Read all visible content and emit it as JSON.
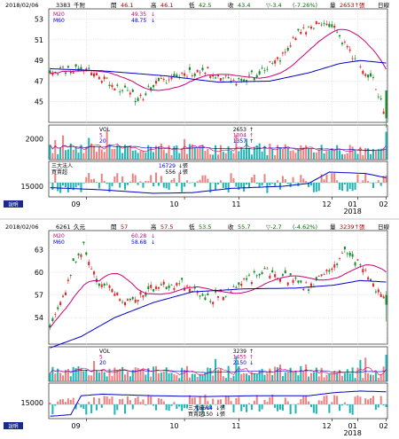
{
  "chart_data": [
    {
      "type": "candlestick",
      "header": {
        "date": "2018/02/06",
        "code": "3383",
        "name": "千附",
        "open_label": "開",
        "open": "46.1",
        "high_label": "高",
        "high": "46.1",
        "low_label": "低",
        "low": "42.5",
        "close_label": "收",
        "close": "43.4",
        "change": "▽-3.4",
        "change_pct": "(-7.26%)",
        "volume_label": "量",
        "volume": "2653↑張",
        "period": "日線"
      },
      "price_axis": {
        "ticks": [
          "53",
          "51",
          "49",
          "47",
          "45"
        ],
        "range": [
          43,
          54
        ]
      },
      "ma_legend": [
        {
          "name": "M20",
          "value": "49.35",
          "arrow": "↓"
        },
        {
          "name": "M60",
          "value": "48.75",
          "arrow": "↓"
        }
      ],
      "volume_legend": {
        "title": "VOL",
        "rows": [
          {
            "name": "VOL",
            "value": "2653",
            "arrow": "↑"
          },
          {
            "name": "5",
            "value": "1004",
            "arrow": "↑"
          },
          {
            "name": "20",
            "value": "1357",
            "arrow": "↑"
          }
        ]
      },
      "volume_axis": {
        "ticks": [
          "2000"
        ],
        "range": [
          0,
          3300
        ]
      },
      "inst_legend": [
        {
          "name": "三大法人",
          "value": "16729",
          "arrow": "↓張"
        },
        {
          "name": "買賣超",
          "value": "556",
          "arrow": "↓張"
        }
      ],
      "inst_axis": {
        "ticks": [
          "15000"
        ],
        "range": [
          13500,
          18500
        ],
        "bar_range": [
          -1200,
          1200
        ]
      },
      "x_axis": {
        "months": [
          "09",
          "10",
          "11",
          "12",
          "01",
          "02"
        ],
        "year": "2018"
      },
      "legend_button": "說明",
      "seed": 11,
      "waypoints": [
        [
          0,
          48
        ],
        [
          14,
          48.2
        ],
        [
          24,
          46.8
        ],
        [
          34,
          45.2
        ],
        [
          40,
          46.6
        ],
        [
          52,
          47.8
        ],
        [
          60,
          48
        ],
        [
          72,
          47
        ],
        [
          80,
          47.6
        ],
        [
          88,
          49
        ],
        [
          96,
          51.5
        ],
        [
          104,
          52.8
        ],
        [
          110,
          52
        ],
        [
          117,
          49.5
        ],
        [
          120,
          48.8
        ],
        [
          125,
          47
        ],
        [
          130,
          43.4
        ]
      ],
      "ma60_points": [
        [
          0,
          48.2
        ],
        [
          20,
          48
        ],
        [
          45,
          47.5
        ],
        [
          65,
          46.9
        ],
        [
          85,
          47
        ],
        [
          100,
          47.8
        ],
        [
          112,
          48.7
        ],
        [
          120,
          49
        ],
        [
          130,
          48.75
        ]
      ],
      "inst_points": [
        [
          0,
          14800
        ],
        [
          20,
          14500
        ],
        [
          40,
          14000
        ],
        [
          55,
          14100
        ],
        [
          70,
          14700
        ],
        [
          90,
          15000
        ],
        [
          100,
          15400
        ],
        [
          108,
          17000
        ],
        [
          115,
          16900
        ],
        [
          122,
          16800
        ],
        [
          130,
          16200
        ]
      ],
      "last_ohlc": [
        46.1,
        46.1,
        42.5,
        43.4
      ]
    },
    {
      "type": "candlestick",
      "header": {
        "date": "2018/02/06",
        "code": "6261",
        "name": "久元",
        "open_label": "開",
        "open": "57",
        "high_label": "高",
        "high": "57.5",
        "low_label": "低",
        "low": "53.5",
        "close_label": "收",
        "close": "55.7",
        "change": "▽-2.7",
        "change_pct": "(-4.62%)",
        "volume_label": "量",
        "volume": "3239↑張",
        "period": "日線"
      },
      "price_axis": {
        "ticks": [
          "63",
          "60",
          "57",
          "54"
        ],
        "range": [
          50.5,
          65.5
        ]
      },
      "ma_legend": [
        {
          "name": "M20",
          "value": "60.28",
          "arrow": "↓"
        },
        {
          "name": "M60",
          "value": "58.68",
          "arrow": "↓"
        }
      ],
      "volume_legend": {
        "title": "VOL",
        "rows": [
          {
            "name": "VOL",
            "value": "3239",
            "arrow": "↑"
          },
          {
            "name": "5",
            "value": "1455",
            "arrow": "↑"
          },
          {
            "name": "20",
            "value": "2150",
            "arrow": "↓"
          }
        ]
      },
      "volume_axis": {
        "ticks": [],
        "range": [
          0,
          4200
        ]
      },
      "inst_legend": [
        {
          "name": "三大法人",
          "value": "16684",
          "arrow": "↓張"
        },
        {
          "name": "買賣超",
          "value": "-150",
          "arrow": "↓張"
        }
      ],
      "inst_axis": {
        "ticks": [
          "15000"
        ],
        "range": [
          13000,
          17500
        ],
        "bar_range": [
          -900,
          900
        ]
      },
      "x_axis": {
        "months": [
          "09",
          "10",
          "11",
          "12",
          "01",
          "02"
        ],
        "year": "2018"
      },
      "legend_button": "說明",
      "seed": 23,
      "waypoints": [
        [
          0,
          53
        ],
        [
          5,
          56.5
        ],
        [
          9,
          61
        ],
        [
          13,
          63.5
        ],
        [
          18,
          59
        ],
        [
          24,
          57.5
        ],
        [
          30,
          56
        ],
        [
          40,
          58
        ],
        [
          52,
          58.5
        ],
        [
          62,
          56.5
        ],
        [
          72,
          58
        ],
        [
          82,
          60
        ],
        [
          90,
          59.5
        ],
        [
          100,
          58
        ],
        [
          108,
          60.5
        ],
        [
          114,
          62.5
        ],
        [
          120,
          61
        ],
        [
          125,
          58.4
        ],
        [
          130,
          55.7
        ]
      ],
      "ma60_points": [
        [
          0,
          50
        ],
        [
          12,
          51.5
        ],
        [
          25,
          54
        ],
        [
          40,
          56
        ],
        [
          55,
          57.4
        ],
        [
          75,
          57.8
        ],
        [
          95,
          57.9
        ],
        [
          110,
          58.3
        ],
        [
          120,
          58.9
        ],
        [
          130,
          58.7
        ]
      ],
      "inst_points": [
        [
          0,
          13300
        ],
        [
          8,
          13500
        ],
        [
          12,
          15900
        ],
        [
          20,
          16100
        ],
        [
          40,
          15900
        ],
        [
          60,
          15800
        ],
        [
          80,
          15900
        ],
        [
          100,
          15900
        ],
        [
          110,
          16300
        ],
        [
          120,
          16500
        ],
        [
          130,
          16400
        ]
      ],
      "last_ohlc": [
        57,
        57.5,
        53.5,
        55.7
      ]
    }
  ]
}
